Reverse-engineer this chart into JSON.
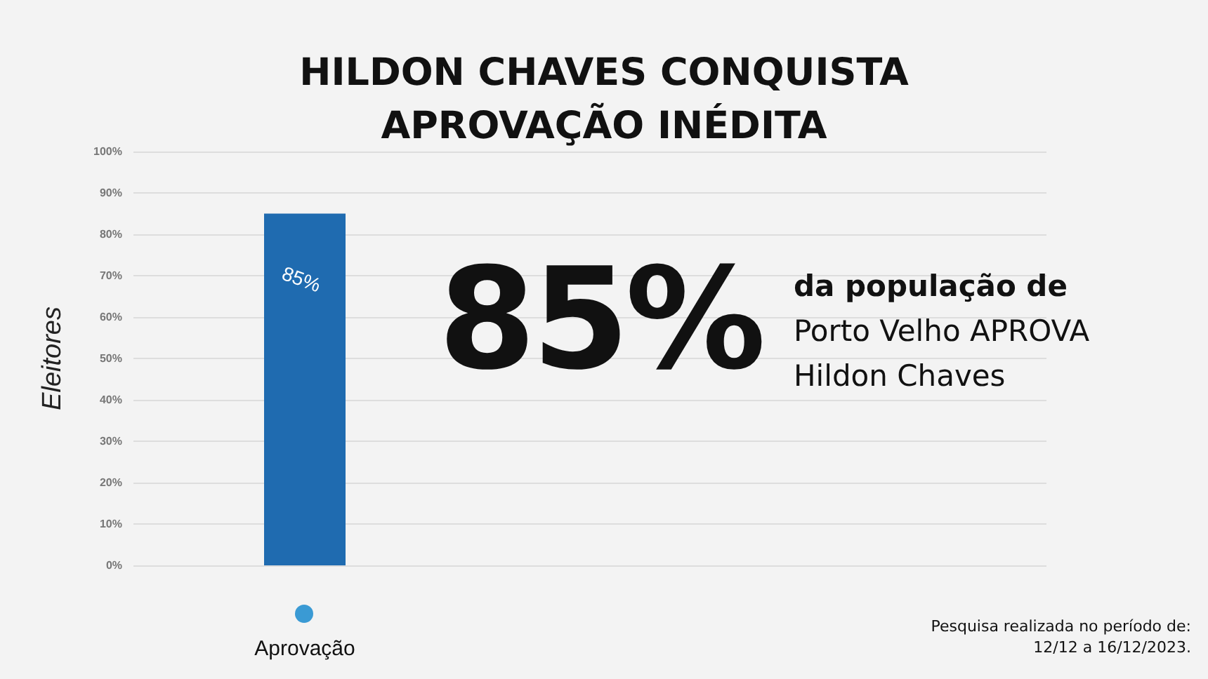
{
  "chart_data": {
    "type": "bar",
    "title": "HILDON CHAVES CONQUISTA\nAPROVAÇÃO INÉDITA",
    "ylabel": "Eleitores",
    "categories": [
      "Aprovação"
    ],
    "series": [
      {
        "color": "#1f6bb0",
        "values": [
          85
        ],
        "value_labels": [
          "85%"
        ]
      }
    ],
    "ylim": [
      0,
      100
    ],
    "yticks": [
      {
        "value": 0,
        "label": "0%"
      },
      {
        "value": 10,
        "label": "10%"
      },
      {
        "value": 20,
        "label": "20%"
      },
      {
        "value": 30,
        "label": "30%"
      },
      {
        "value": 40,
        "label": "40%"
      },
      {
        "value": 50,
        "label": "50%"
      },
      {
        "value": 60,
        "label": "60%"
      },
      {
        "value": 70,
        "label": "70%"
      },
      {
        "value": 80,
        "label": "80%"
      },
      {
        "value": 90,
        "label": "90%"
      },
      {
        "value": 100,
        "label": "100%"
      }
    ],
    "grid": "y",
    "annotations": [
      "85%",
      "da população de",
      "Porto Velho APROVA",
      "Hildon Chaves",
      "Pesquisa realizada no período de:\n12/12 a 16/12/2023."
    ]
  }
}
